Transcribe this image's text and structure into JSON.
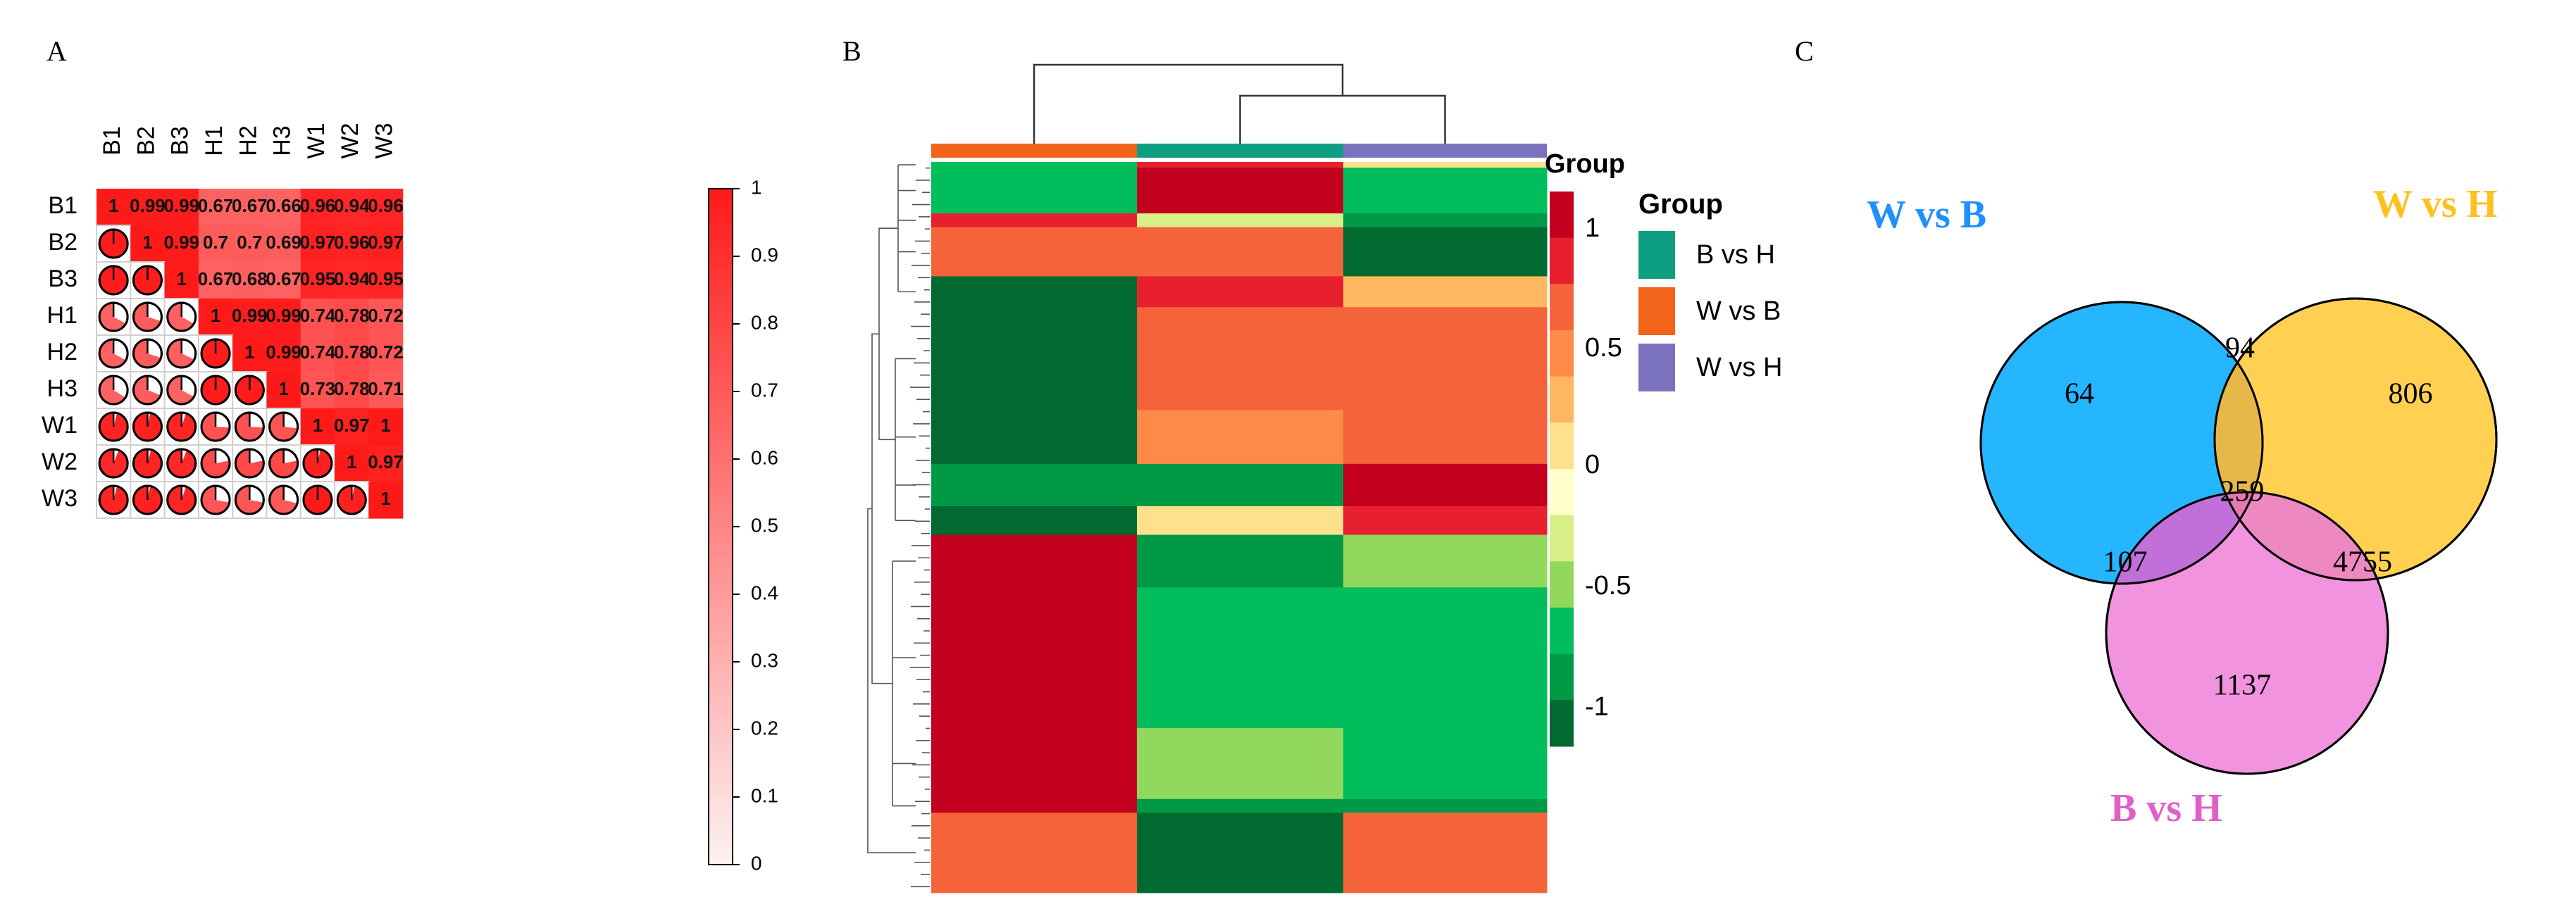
{
  "panel_labels": {
    "a": "A",
    "b": "B",
    "c": "C"
  },
  "chart_data": [
    {
      "type": "heatmap",
      "subtype": "correlation-matrix",
      "title": "",
      "labels": [
        "B1",
        "B2",
        "B3",
        "H1",
        "H2",
        "H3",
        "W1",
        "W2",
        "W3"
      ],
      "upper_display": "value",
      "lower_display": "pie",
      "colorbar": {
        "min": 0,
        "max": 1,
        "ticks": [
          "1",
          "0.9",
          "0.8",
          "0.7",
          "0.6",
          "0.5",
          "0.4",
          "0.3",
          "0.2",
          "0.1",
          "0"
        ],
        "low_color": "#fdf1f1",
        "high_color": "#ff1a1a"
      },
      "matrix": [
        [
          1,
          0.99,
          0.99,
          0.67,
          0.67,
          0.66,
          0.96,
          0.94,
          0.96
        ],
        [
          0.99,
          1,
          0.99,
          0.7,
          0.7,
          0.69,
          0.97,
          0.96,
          0.97
        ],
        [
          0.99,
          0.99,
          1,
          0.67,
          0.68,
          0.67,
          0.95,
          0.94,
          0.95
        ],
        [
          0.67,
          0.7,
          0.67,
          1,
          0.99,
          0.99,
          0.74,
          0.78,
          0.72
        ],
        [
          0.67,
          0.7,
          0.68,
          0.99,
          1,
          0.99,
          0.74,
          0.78,
          0.72
        ],
        [
          0.66,
          0.69,
          0.67,
          0.99,
          0.99,
          1,
          0.73,
          0.78,
          0.71
        ],
        [
          0.96,
          0.97,
          0.95,
          0.74,
          0.74,
          0.73,
          1,
          0.97,
          1
        ],
        [
          0.94,
          0.96,
          0.94,
          0.78,
          0.78,
          0.78,
          0.97,
          1,
          0.97
        ],
        [
          0.96,
          0.97,
          0.95,
          0.72,
          0.72,
          0.71,
          1,
          0.97,
          1
        ]
      ],
      "cell_text": [
        [
          "1",
          "0.99",
          "0.99",
          "0.67",
          "0.67",
          "0.66",
          "0.96",
          "0.94",
          "0.96"
        ],
        [
          "",
          "1",
          "0.99",
          "0.7",
          "0.7",
          "0.69",
          "0.97",
          "0.96",
          "0.97"
        ],
        [
          "",
          "",
          "1",
          "0.67",
          "0.68",
          "0.67",
          "0.95",
          "0.94",
          "0.95"
        ],
        [
          "",
          "",
          "",
          "1",
          "0.99",
          "0.99",
          "0.74",
          "0.78",
          "0.72"
        ],
        [
          "",
          "",
          "",
          "",
          "1",
          "0.99",
          "0.74",
          "0.78",
          "0.72"
        ],
        [
          "",
          "",
          "",
          "",
          "",
          "1",
          "0.73",
          "0.78",
          "0.71"
        ],
        [
          "",
          "",
          "",
          "",
          "",
          "",
          "1",
          "0.97",
          "1"
        ],
        [
          "",
          "",
          "",
          "",
          "",
          "",
          "",
          "1",
          "0.97"
        ],
        [
          "",
          "",
          "",
          "",
          "",
          "",
          "",
          "",
          "1"
        ]
      ]
    },
    {
      "type": "heatmap",
      "subtype": "clustered",
      "columns": [
        "W vs B",
        "B vs H",
        "W vs H"
      ],
      "column_colors": [
        "#f26419",
        "#0e9e82",
        "#7b72bd"
      ],
      "scale_ticks": [
        "1",
        "0.5",
        "0",
        "-0.5",
        "-1"
      ],
      "scale_range": [
        -1,
        1
      ],
      "scale_colors": [
        "#c2001e",
        "#e8202e",
        "#f5633a",
        "#ff8a48",
        "#ffb860",
        "#ffe08c",
        "#ffffcc",
        "#d8ee86",
        "#92d85c",
        "#02bd5b",
        "#009a46",
        "#006a31"
      ],
      "legend_title": "Group",
      "legend_entries": [
        {
          "label": "B  vs H",
          "color": "#0e9e82"
        },
        {
          "label": "W  vs B",
          "color": "#f26419"
        },
        {
          "label": "W  vs H",
          "color": "#7b72bd"
        }
      ],
      "scale_title": "Group",
      "blocks": [
        {
          "rows": 0.5,
          "values": [
            -0.6,
            0.9,
            0.1
          ]
        },
        {
          "rows": 4,
          "values": [
            -0.7,
            0.95,
            -0.7
          ]
        },
        {
          "rows": 1.2,
          "values": [
            0.9,
            -0.3,
            -0.9
          ]
        },
        {
          "rows": 4.3,
          "values": [
            0.6,
            0.6,
            -1.0
          ]
        },
        {
          "rows": 2.7,
          "values": [
            -1.0,
            0.85,
            0.2
          ]
        },
        {
          "rows": 9,
          "values": [
            -1.0,
            0.6,
            0.6
          ]
        },
        {
          "rows": 4.7,
          "values": [
            -1.0,
            0.4,
            0.6
          ]
        },
        {
          "rows": 3.7,
          "values": [
            -0.8,
            -0.8,
            0.95
          ]
        },
        {
          "rows": 2.5,
          "values": [
            -0.95,
            0.15,
            0.85
          ]
        },
        {
          "rows": 4.6,
          "values": [
            1.0,
            -0.85,
            -0.4
          ]
        },
        {
          "rows": 12.3,
          "values": [
            1.0,
            -0.7,
            -0.7
          ]
        },
        {
          "rows": 6.2,
          "values": [
            1.0,
            -0.45,
            -0.7
          ]
        },
        {
          "rows": 1.2,
          "values": [
            1.0,
            -0.75,
            -0.9
          ]
        },
        {
          "rows": 7,
          "values": [
            0.6,
            -1.0,
            0.6
          ]
        }
      ]
    },
    {
      "type": "venn",
      "sets": [
        {
          "name": "W   vs    B",
          "color": "#00a8ff",
          "label_color": "#1e90ff"
        },
        {
          "name": "W   vs     H",
          "color": "#ffc832",
          "label_color": "#ffc020"
        },
        {
          "name": "B   vs     H",
          "color": "#ef80d8",
          "label_color": "#e060c8"
        }
      ],
      "regions": {
        "W vs B only": 64,
        "W vs H only": 806,
        "B vs H only": 1137,
        "W vs B & W vs H": 94,
        "W vs B & B vs H": 107,
        "W vs H & B vs H": 4755,
        "all three": 259
      }
    }
  ]
}
